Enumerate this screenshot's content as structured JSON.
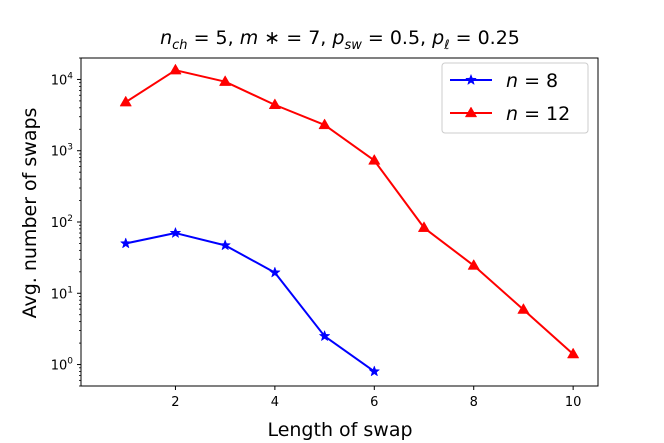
{
  "chart_data": {
    "type": "line",
    "title": "n_ch = 5, m* = 7, p_sw = 0.5, p_ℓ = 0.25",
    "title_parts": {
      "t1": "n",
      "t1s": "ch",
      "t1v": " = 5, ",
      "t2": "m",
      "t2v": " ∗ = 7, ",
      "t3": "p",
      "t3s": "sw",
      "t3v": " = 0.5, ",
      "t4": "p",
      "t4s": "ℓ",
      "t4v": " = 0.25"
    },
    "xlabel": "Length of swap",
    "ylabel": "Avg. number of swaps",
    "xlim": [
      0.1,
      10.5
    ],
    "ylim": [
      0.5,
      20000
    ],
    "yscale": "log",
    "xticks": [
      2,
      4,
      6,
      8,
      10
    ],
    "xtick_labels": [
      "2",
      "4",
      "6",
      "8",
      "10"
    ],
    "yticks": [
      1,
      10,
      100,
      1000,
      10000
    ],
    "ytick_labels": [
      {
        "base": "10",
        "exp": "0"
      },
      {
        "base": "10",
        "exp": "1"
      },
      {
        "base": "10",
        "exp": "2"
      },
      {
        "base": "10",
        "exp": "3"
      },
      {
        "base": "10",
        "exp": "4"
      }
    ],
    "grid": false,
    "legend_position": "top-right",
    "series": [
      {
        "name": "n = 8",
        "legend_var": "n",
        "legend_val": " = 8",
        "color": "#0000ff",
        "marker": "star",
        "x": [
          1,
          2,
          3,
          4,
          5,
          6
        ],
        "y": [
          50,
          70,
          47,
          19.5,
          2.5,
          0.8
        ]
      },
      {
        "name": "n = 12",
        "legend_var": "n",
        "legend_val": " = 12",
        "color": "#ff0000",
        "marker": "triangle",
        "x": [
          1,
          2,
          3,
          4,
          5,
          6,
          7,
          8,
          9,
          10
        ],
        "y": [
          4800,
          13500,
          9300,
          4400,
          2300,
          730,
          83,
          24.5,
          5.9,
          1.4
        ]
      }
    ]
  }
}
